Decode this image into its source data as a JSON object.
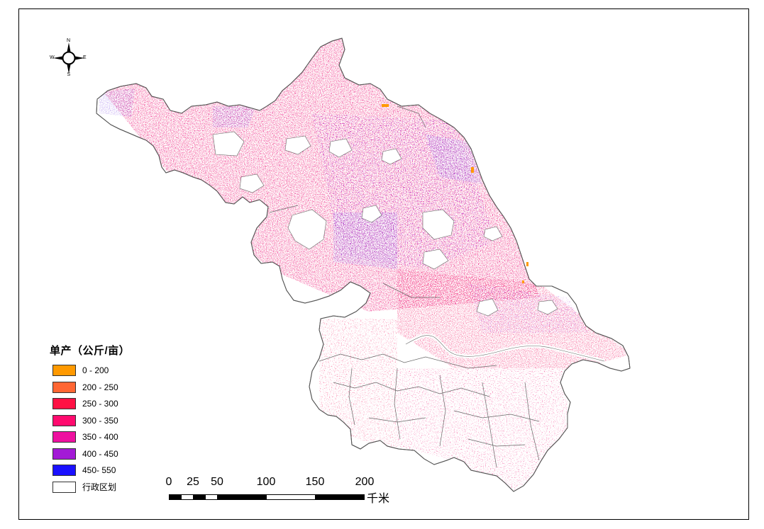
{
  "north_arrow": {
    "n": "N",
    "s": "S",
    "e": "E",
    "w": "W"
  },
  "legend": {
    "title": "单产（公斤/亩）",
    "items": [
      {
        "label": "0 - 200",
        "color": "#ff9900"
      },
      {
        "label": "200 - 250",
        "color": "#ff6633"
      },
      {
        "label": "250 - 300",
        "color": "#ff1144"
      },
      {
        "label": "300 - 350",
        "color": "#ff0a6e"
      },
      {
        "label": "350 - 400",
        "color": "#ee11a0"
      },
      {
        "label": "400 - 450",
        "color": "#a31ad6"
      },
      {
        "label": "450- 550",
        "color": "#1a10ff"
      },
      {
        "label": "行政区划",
        "color": "#ffffff"
      }
    ]
  },
  "scale_bar": {
    "ticks": [
      "0",
      "25",
      "50",
      "100",
      "150",
      "200"
    ],
    "unit": "千米"
  }
}
